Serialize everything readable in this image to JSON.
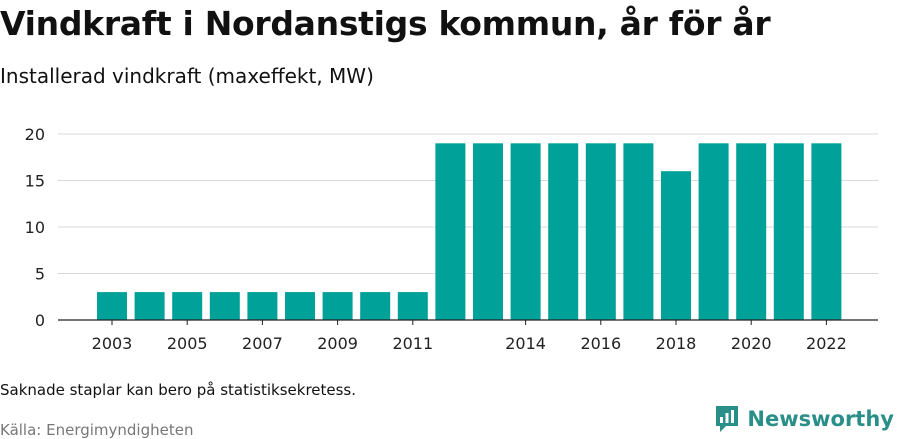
{
  "title": "Vindkraft i Nordanstigs kommun, år för år",
  "subtitle": "Installerad vindkraft (maxeffekt, MW)",
  "note": "Saknade staplar kan bero på statistiksekretess.",
  "source": "Källa: Energimyndigheten",
  "brand": {
    "name": "Newsworthy",
    "icon": "newsworthy-logo-icon",
    "color": "#2a8f88"
  },
  "chart_data": {
    "type": "bar",
    "title": "Vindkraft i Nordanstigs kommun, år för år",
    "subtitle": "Installerad vindkraft (maxeffekt, MW)",
    "categories": [
      "2003",
      "2004",
      "2005",
      "2006",
      "2007",
      "2008",
      "2009",
      "2010",
      "2011",
      "2012",
      "2013",
      "2014",
      "2015",
      "2016",
      "2017",
      "2018",
      "2019",
      "2020",
      "2021",
      "2022"
    ],
    "values": [
      3,
      3,
      3,
      3,
      3,
      3,
      3,
      3,
      3,
      19,
      19,
      19,
      19,
      19,
      19,
      16,
      19,
      19,
      19,
      19
    ],
    "x_tick_labels": [
      "2003",
      "2005",
      "2007",
      "2009",
      "2011",
      "2014",
      "2016",
      "2018",
      "2020",
      "2022"
    ],
    "y_ticks": [
      0,
      5,
      10,
      15,
      20
    ],
    "ylim": [
      0,
      20
    ],
    "grid": true,
    "bar_color": "#00a198"
  }
}
